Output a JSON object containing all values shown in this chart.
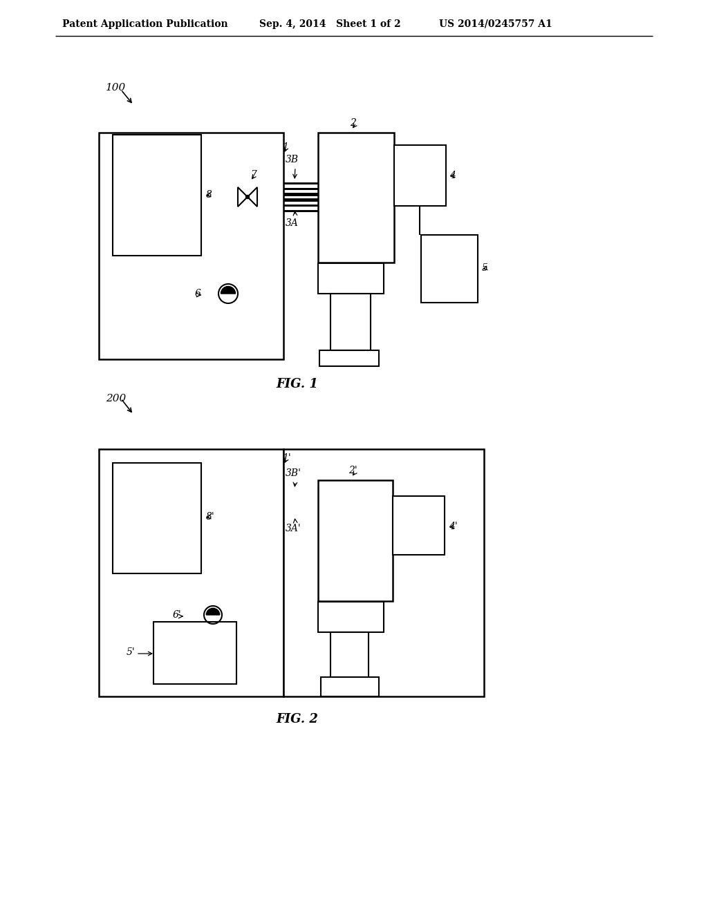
{
  "bg_color": "#ffffff",
  "lc": "#000000",
  "header_left": "Patent Application Publication",
  "header_mid": "Sep. 4, 2014   Sheet 1 of 2",
  "header_right": "US 2014/0245757 A1"
}
